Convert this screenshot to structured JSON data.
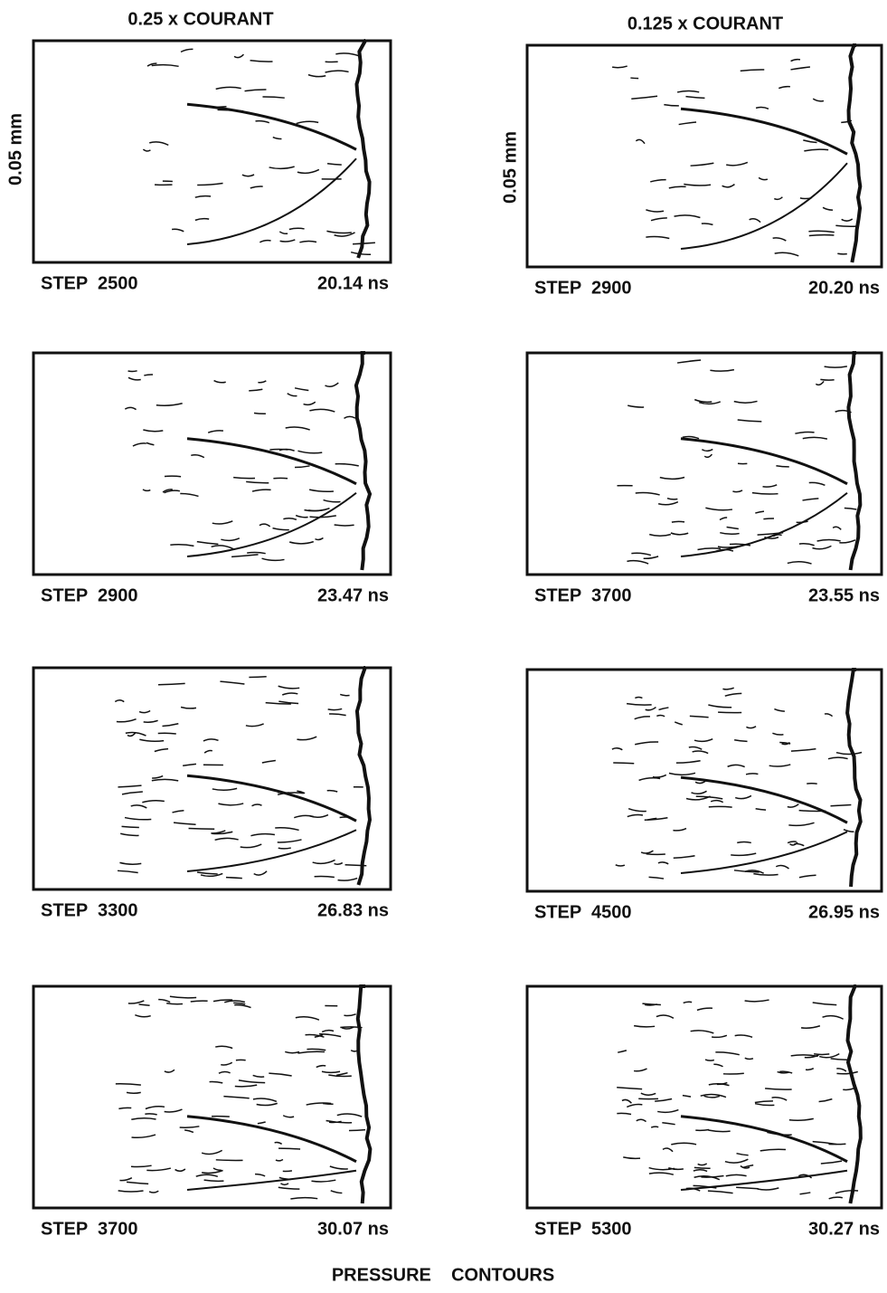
{
  "columns": [
    {
      "title": "0.25 x COURANT",
      "scale_label": "0.05 mm",
      "panels": [
        {
          "step": "STEP  2500",
          "time": "20.14 ns"
        },
        {
          "step": "STEP  2900",
          "time": "23.47 ns"
        },
        {
          "step": "STEP  3300",
          "time": "26.83 ns"
        },
        {
          "step": "STEP  3700",
          "time": "30.07 ns"
        }
      ]
    },
    {
      "title": "0.125 x COURANT",
      "scale_label": "0.05 mm",
      "panels": [
        {
          "step": "STEP  2900",
          "time": "20.20 ns"
        },
        {
          "step": "STEP  3700",
          "time": "23.55 ns"
        },
        {
          "step": "STEP  4500",
          "time": "26.95 ns"
        },
        {
          "step": "STEP  5300",
          "time": "30.27 ns"
        }
      ]
    }
  ],
  "caption": "PRESSURE    CONTOURS"
}
